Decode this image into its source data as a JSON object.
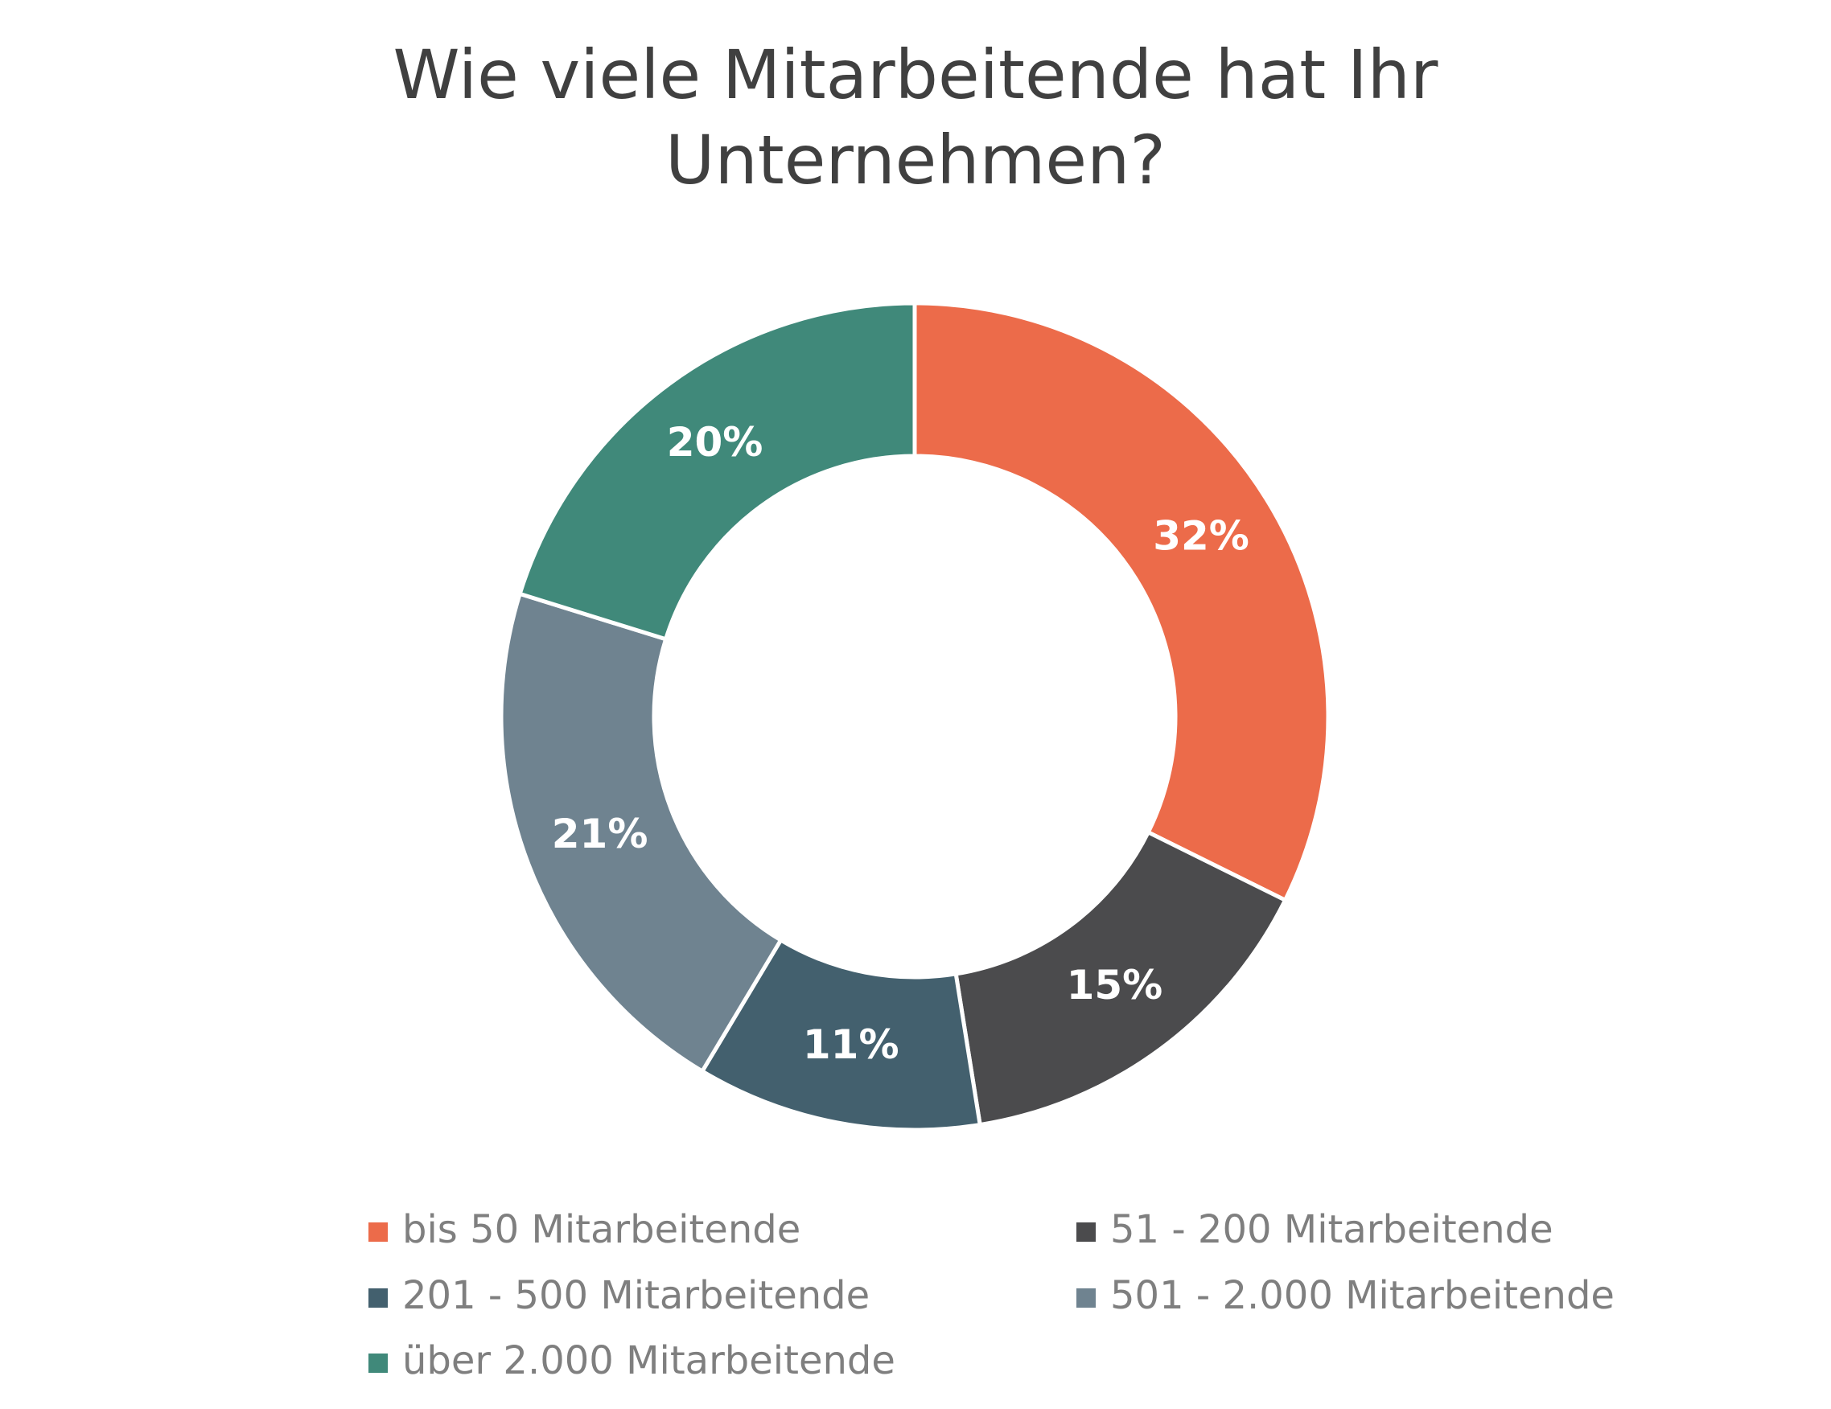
{
  "chart_data": {
    "type": "donut",
    "title": "Wie viele Mitarbeitende hat Ihr Unternehmen?",
    "categories": [
      "bis 50 Mitarbeitende",
      "51 - 200 Mitarbeitende",
      "201 - 500 Mitarbeitende",
      "501 - 2.000 Mitarbeitende",
      "über 2.000 Mitarbeitende"
    ],
    "values": [
      32,
      15,
      11,
      21,
      20
    ],
    "value_labels": [
      "32%",
      "15%",
      "11%",
      "21%",
      "20%"
    ],
    "colors": [
      "#ec6b4a",
      "#4b4b4d",
      "#43606e",
      "#6f8390",
      "#40897a"
    ],
    "legend": "bottom"
  }
}
